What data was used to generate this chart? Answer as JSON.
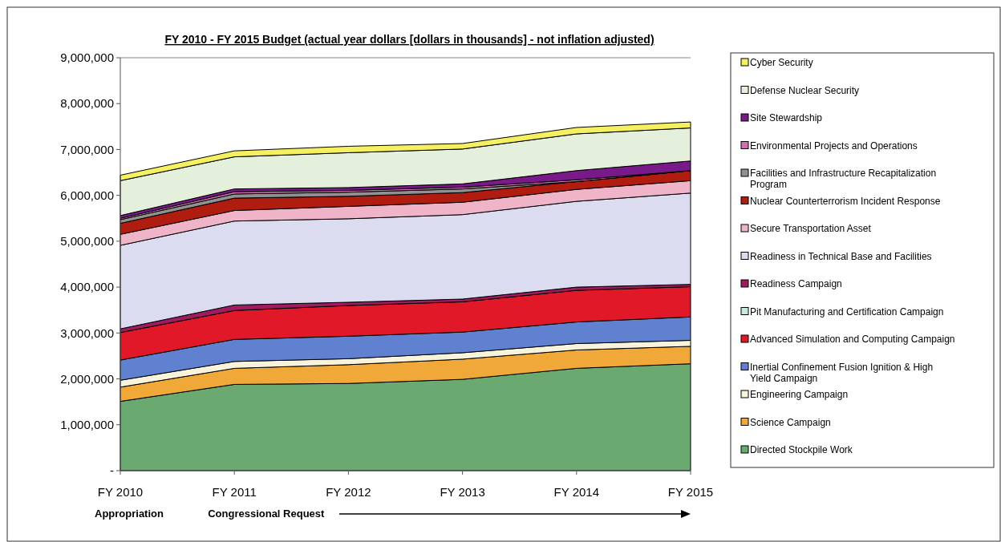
{
  "chart_data": {
    "type": "area",
    "stacked": true,
    "title": "FY 2010 - FY 2015 Budget (actual year dollars [dollars in thousands] - not inflation adjusted)",
    "categories": [
      "FY 2010",
      "FY 2011",
      "FY 2012",
      "FY 2013",
      "FY 2014",
      "FY 2015"
    ],
    "ylim": [
      0,
      9000000
    ],
    "yticks": [
      {
        "value": 0,
        "label": "-"
      },
      {
        "value": 1000000,
        "label": "1,000,000"
      },
      {
        "value": 2000000,
        "label": "2,000,000"
      },
      {
        "value": 3000000,
        "label": "3,000,000"
      },
      {
        "value": 4000000,
        "label": "4,000,000"
      },
      {
        "value": 5000000,
        "label": "5,000,000"
      },
      {
        "value": 6000000,
        "label": "6,000,000"
      },
      {
        "value": 7000000,
        "label": "7,000,000"
      },
      {
        "value": 8000000,
        "label": "8,000,000"
      },
      {
        "value": 9000000,
        "label": "9,000,000"
      }
    ],
    "legend": "right",
    "annotations": [
      "Appropriation",
      "Congressional Request"
    ],
    "series": [
      {
        "name": "Directed Stockpile Work",
        "color": "#6aaa70",
        "values": [
          1510000,
          1880000,
          1900000,
          1990000,
          2230000,
          2330000
        ]
      },
      {
        "name": "Science Campaign",
        "color": "#f0a838",
        "values": [
          310000,
          350000,
          410000,
          440000,
          400000,
          380000
        ]
      },
      {
        "name": "Engineering Campaign",
        "color": "#f8f4dc",
        "values": [
          150000,
          150000,
          130000,
          140000,
          140000,
          130000
        ]
      },
      {
        "name": "Inertial Confinement Fusion Ignition & High Yield Campaign",
        "color": "#6080d0",
        "values": [
          440000,
          480000,
          490000,
          450000,
          470000,
          510000
        ]
      },
      {
        "name": "Advanced Simulation and Computing Campaign",
        "color": "#e01828",
        "values": [
          600000,
          630000,
          670000,
          660000,
          690000,
          660000
        ]
      },
      {
        "name": "Pit Manufacturing and Certification Campaign",
        "color": "#c8e8e0",
        "values": [
          null,
          null,
          null,
          null,
          null,
          null
        ]
      },
      {
        "name": "Readiness Campaign",
        "color": "#a01c60",
        "values": [
          80000,
          120000,
          70000,
          60000,
          70000,
          50000
        ]
      },
      {
        "name": "Readiness in Technical Base and Facilities",
        "color": "#dcdcf0",
        "values": [
          1820000,
          1830000,
          1820000,
          1840000,
          1870000,
          1990000
        ]
      },
      {
        "name": "Secure Transportation Asset",
        "color": "#f0b4c8",
        "values": [
          240000,
          230000,
          270000,
          270000,
          260000,
          270000
        ]
      },
      {
        "name": "Nuclear Counterterrorism Incident Response",
        "color": "#b01c10",
        "values": [
          240000,
          270000,
          220000,
          210000,
          170000,
          220000
        ]
      },
      {
        "name": "Facilities and Infrastructure Recapitalization Program",
        "color": "#909090",
        "values": [
          80000,
          90000,
          90000,
          80000,
          0,
          0
        ]
      },
      {
        "name": "Environmental Projects and Operations",
        "color": "#d070b0",
        "values": [
          30000,
          50000,
          40000,
          40000,
          40000,
          0
        ]
      },
      {
        "name": "Site Stewardship",
        "color": "#7a1a8a",
        "values": [
          60000,
          60000,
          60000,
          70000,
          200000,
          210000
        ]
      },
      {
        "name": "Defense Nuclear Security",
        "color": "#e4f0dc",
        "values": [
          760000,
          700000,
          760000,
          760000,
          800000,
          720000
        ]
      },
      {
        "name": "Cyber Security",
        "color": "#f5f060",
        "values": [
          120000,
          130000,
          140000,
          120000,
          140000,
          130000
        ]
      }
    ]
  }
}
